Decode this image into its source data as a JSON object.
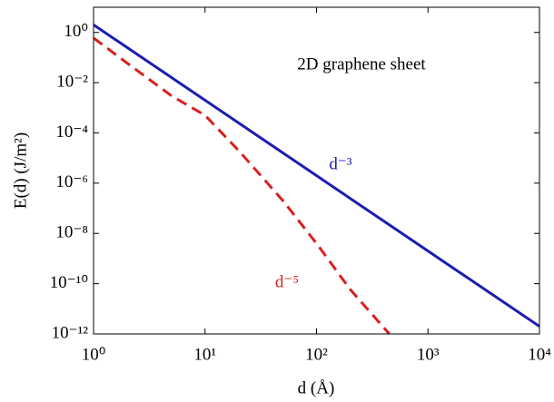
{
  "chart_data": {
    "type": "line",
    "xlabel": "d (Å)",
    "ylabel": "E(d) (J/m²)",
    "annotations": [
      "2D graphene sheet"
    ],
    "log_x": true,
    "log_y": true,
    "xlim": [
      1,
      10000
    ],
    "ylim": [
      1e-12,
      10
    ],
    "xticks": [
      {
        "value": 1,
        "label": "10⁰"
      },
      {
        "value": 10,
        "label": "10¹"
      },
      {
        "value": 100,
        "label": "10²"
      },
      {
        "value": 1000,
        "label": "10³"
      },
      {
        "value": 10000,
        "label": "10⁴"
      }
    ],
    "yticks": [
      {
        "value": 1,
        "label": "10⁰"
      },
      {
        "value": 0.01,
        "label": "10⁻²"
      },
      {
        "value": 0.0001,
        "label": "10⁻⁴"
      },
      {
        "value": 1e-06,
        "label": "10⁻⁶"
      },
      {
        "value": 1e-08,
        "label": "10⁻⁸"
      },
      {
        "value": 1e-10,
        "label": "10⁻¹⁰"
      },
      {
        "value": 1e-12,
        "label": "10⁻¹²"
      }
    ],
    "series": [
      {
        "name": "d⁻³",
        "color": "#1c1cb0",
        "dashed": false,
        "x": [
          1,
          10000
        ],
        "values": [
          2,
          2e-12
        ]
      },
      {
        "name": "d⁻⁵",
        "color": "#d8201e",
        "dashed": true,
        "x": [
          1,
          2,
          5,
          10,
          20,
          50,
          100,
          200,
          450
        ],
        "values": [
          0.6,
          0.06,
          0.003,
          0.0005,
          2e-05,
          2e-07,
          4e-09,
          6e-11,
          1e-12
        ]
      }
    ]
  }
}
